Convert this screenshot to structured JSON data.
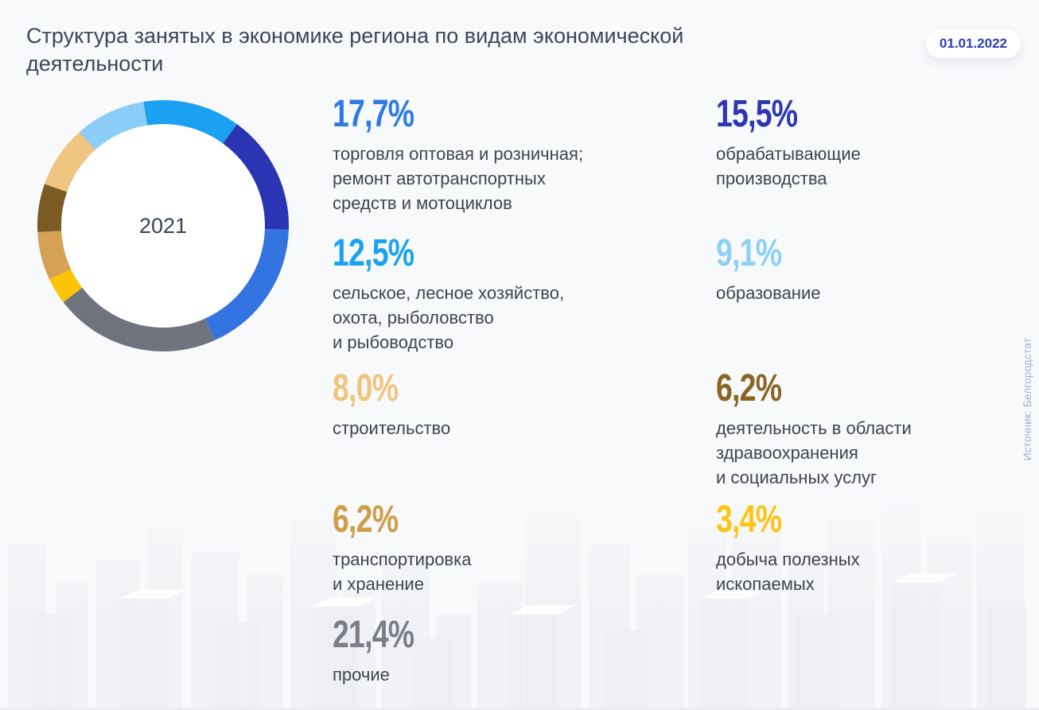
{
  "title": "Структура занятых в экономике региона по видам экономической\nдеятельности",
  "date_badge": "01.01.2022",
  "source_note": "Источник: Белгородстат",
  "chart_data": {
    "type": "pie",
    "donut": true,
    "center_label": "2021",
    "start_angle_deg": -9,
    "unit": "%",
    "segments": [
      {
        "label": "сельское, лесное хозяйство, охота, рыболовство и рыбоводство",
        "value": 12.5,
        "color": "#1ba1f1"
      },
      {
        "label": "обрабатывающие производства",
        "value": 15.5,
        "color": "#2b35b3"
      },
      {
        "label": "торговля оптовая и розничная; ремонт автотранспортных средств и мотоциклов",
        "value": 17.7,
        "color": "#3374e0"
      },
      {
        "label": "прочие",
        "value": 21.4,
        "color": "#6f737e"
      },
      {
        "label": "добыча полезных ископаемых",
        "value": 3.4,
        "color": "#ffc306"
      },
      {
        "label": "транспортировка и хранение",
        "value": 6.2,
        "color": "#d4a155"
      },
      {
        "label": "деятельность в области здравоохранения и социальных услуг",
        "value": 6.2,
        "color": "#7b5a23"
      },
      {
        "label": "строительство",
        "value": 8.0,
        "color": "#efc581"
      },
      {
        "label": "образование",
        "value": 9.1,
        "color": "#8bcdf8"
      }
    ]
  },
  "stats": {
    "left": [
      {
        "percent": "17,7%",
        "color": "#2e7ce2",
        "label": "торговля оптовая и розничная;\nремонт автотранспортных\nсредств и мотоциклов"
      },
      {
        "percent": "12,5%",
        "color": "#1ba3f2",
        "label": "сельское, лесное хозяйство,\nохота, рыболовство\nи рыбоводство"
      },
      {
        "percent": "8,0%",
        "color": "#f0c47e",
        "label": "строительство"
      },
      {
        "percent": "6,2%",
        "color": "#d09e49",
        "label": "транспортировка\nи хранение"
      },
      {
        "percent": "21,4%",
        "color": "#7b7e88",
        "label": "прочие"
      }
    ],
    "right": [
      {
        "percent": "15,5%",
        "color": "#2c36b2",
        "label": "обрабатывающие\nпроизводства"
      },
      {
        "percent": "9,1%",
        "color": "#8fd0f7",
        "label": "образование"
      },
      {
        "percent": "6,2%",
        "color": "#8a6523",
        "label": "деятельность в области\nздравоохранения\nи социальных услуг"
      },
      {
        "percent": "3,4%",
        "color": "#fdc413",
        "label": "добыча полезных\nископаемых"
      }
    ]
  }
}
